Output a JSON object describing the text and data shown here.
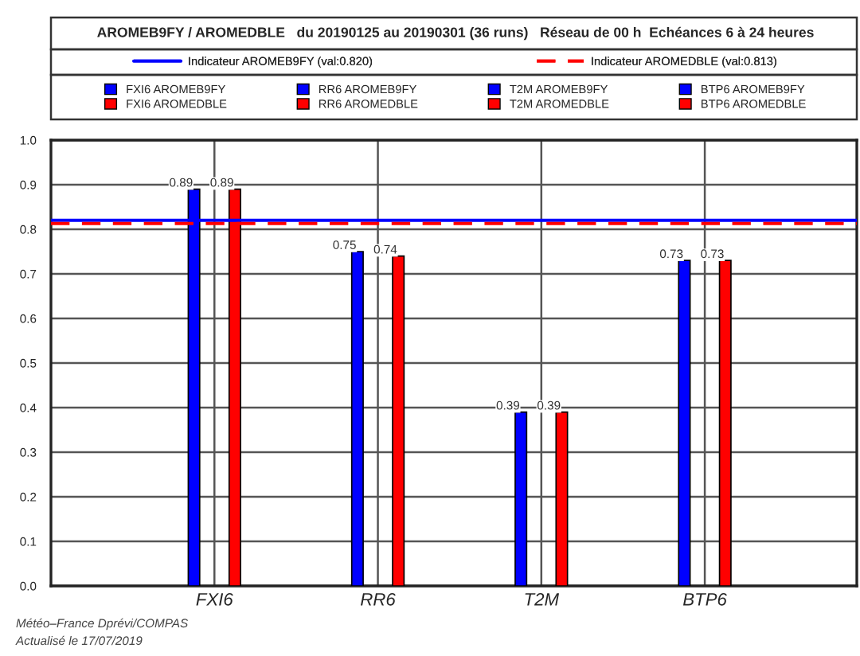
{
  "chart_data": {
    "type": "bar",
    "title": "AROMEB9FY / AROMEDBLE   du 20190125 au 20190301 (36 runs)   Réseau de 00 h  Echéances 6 à 24 heures",
    "categories": [
      "FXI6",
      "RR6",
      "T2M",
      "BTP6"
    ],
    "series": [
      {
        "name": "FXI6 AROMEB9FY",
        "color": "#0000ff",
        "values": [
          0.89,
          null,
          null,
          null
        ]
      },
      {
        "name": "FXI6 AROMEDBLE",
        "color": "#ff0000",
        "values": [
          0.89,
          null,
          null,
          null
        ]
      },
      {
        "name": "RR6 AROMEB9FY",
        "color": "#0000ff",
        "values": [
          null,
          0.75,
          null,
          null
        ]
      },
      {
        "name": "RR6 AROMEDBLE",
        "color": "#ff0000",
        "values": [
          null,
          0.74,
          null,
          null
        ]
      },
      {
        "name": "T2M AROMEB9FY",
        "color": "#0000ff",
        "values": [
          null,
          null,
          0.39,
          null
        ]
      },
      {
        "name": "T2M AROMEDBLE",
        "color": "#ff0000",
        "values": [
          null,
          null,
          0.39,
          null
        ]
      },
      {
        "name": "BTP6 AROMEB9FY",
        "color": "#0000ff",
        "values": [
          null,
          null,
          null,
          0.73
        ]
      },
      {
        "name": "BTP6 AROMEDBLE",
        "color": "#ff0000",
        "values": [
          null,
          null,
          null,
          0.73
        ]
      }
    ],
    "ylim": [
      0.0,
      1.0
    ],
    "yticks": [
      {
        "value": 0.0,
        "label": "0.0"
      },
      {
        "value": 0.1,
        "label": "0.1"
      },
      {
        "value": 0.2,
        "label": "0.2"
      },
      {
        "value": 0.3,
        "label": "0.3"
      },
      {
        "value": 0.4,
        "label": "0.4"
      },
      {
        "value": 0.5,
        "label": "0.5"
      },
      {
        "value": 0.6,
        "label": "0.6"
      },
      {
        "value": 0.7,
        "label": "0.7"
      },
      {
        "value": 0.8,
        "label": "0.8"
      },
      {
        "value": 0.9,
        "label": "0.9"
      },
      {
        "value": 1.0,
        "label": "1.0"
      }
    ],
    "ref_lines": [
      {
        "axis": "y",
        "value": 0.82,
        "label": "Indicateur AROMEB9FY (val:0.820)",
        "color": "#0000ff",
        "line_style": "solid"
      },
      {
        "axis": "y",
        "value": 0.813,
        "label": "Indicateur AROMEDBLE (val:0.813)",
        "color": "#ff0000",
        "line_style": "dashed"
      }
    ],
    "data_labels": true,
    "grid": true,
    "legend": "top",
    "annotations": [
      "Météo–France Dprévi/COMPAS",
      "Actualisé le 17/07/2019"
    ]
  }
}
